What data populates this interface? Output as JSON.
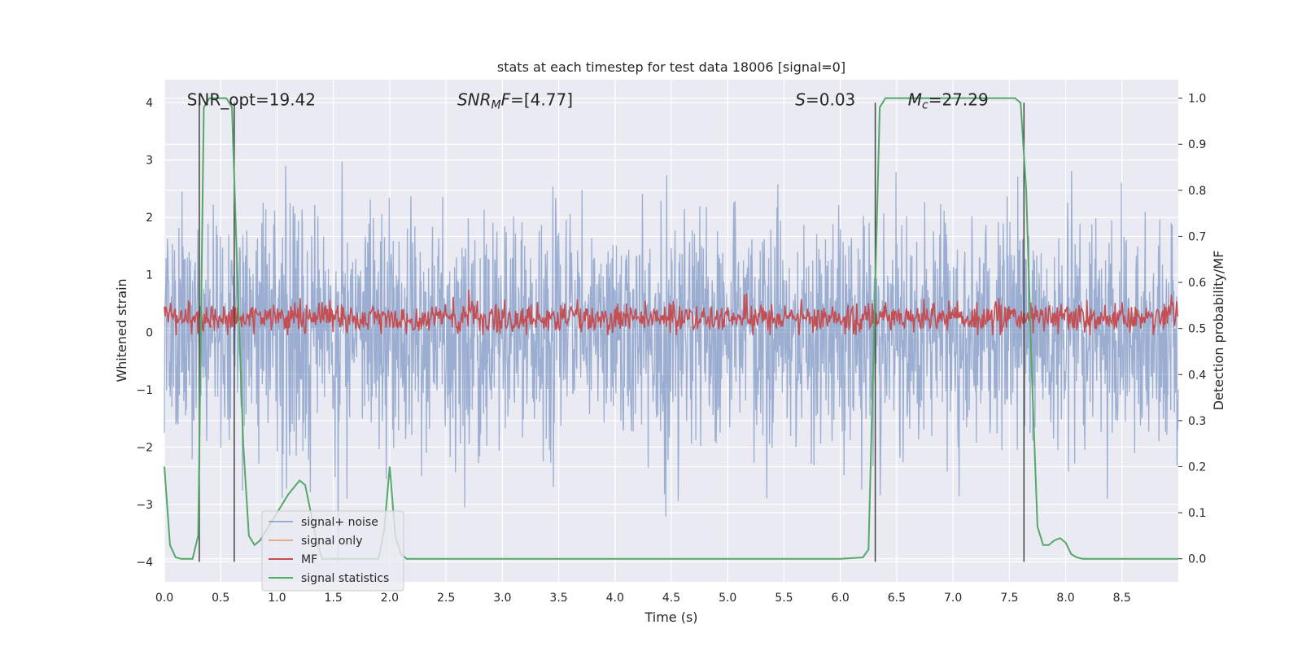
{
  "chart_data": {
    "type": "line",
    "title": "stats at each timestep for test data 18006 [signal=0]",
    "xlabel": "Time (s)",
    "ylabel": "Whitened strain",
    "ylabel_right": "Detection probability/MF",
    "xlim": [
      0.0,
      9.0
    ],
    "ylim": [
      -4.35,
      4.4
    ],
    "ylim_right": [
      -0.05,
      1.04
    ],
    "xticks": [
      0.0,
      0.5,
      1.0,
      1.5,
      2.0,
      2.5,
      3.0,
      3.5,
      4.0,
      4.5,
      5.0,
      5.5,
      6.0,
      6.5,
      7.0,
      7.5,
      8.0,
      8.5
    ],
    "xtick_labels": [
      "0.0",
      "0.5",
      "1.0",
      "1.5",
      "2.0",
      "2.5",
      "3.0",
      "3.5",
      "4.0",
      "4.5",
      "5.0",
      "5.5",
      "6.0",
      "6.5",
      "7.0",
      "7.5",
      "8.0",
      "8.5"
    ],
    "yticks": [
      -4,
      -3,
      -2,
      -1,
      0,
      1,
      2,
      3,
      4
    ],
    "ytick_labels": [
      "−4",
      "−3",
      "−2",
      "−1",
      "0",
      "1",
      "2",
      "3",
      "4"
    ],
    "yticks_right": [
      0.0,
      0.1,
      0.2,
      0.3,
      0.4,
      0.5,
      0.6,
      0.7,
      0.8,
      0.9,
      1.0
    ],
    "ytick_labels_right": [
      "0.0",
      "0.1",
      "0.2",
      "0.3",
      "0.4",
      "0.5",
      "0.6",
      "0.7",
      "0.8",
      "0.9",
      "1.0"
    ],
    "annotations": [
      {
        "name": "snr-opt",
        "text": "SNR_opt=19.42",
        "x": 0.2
      },
      {
        "name": "snr-mf",
        "text": "SNR_MF=[4.77]",
        "x": 2.6
      },
      {
        "name": "s-value",
        "text": "S=0.03",
        "x": 5.6
      },
      {
        "name": "chirp-mass",
        "text": "M_c=27.29",
        "x": 6.6
      }
    ],
    "annotation_y": 4.05,
    "vlines": [
      {
        "x": 0.31,
        "ymin": -4.0,
        "ymax": 4.0
      },
      {
        "x": 0.62,
        "ymin": -4.0,
        "ymax": 4.0
      },
      {
        "x": 6.31,
        "ymin": -4.0,
        "ymax": 4.0
      },
      {
        "x": 7.63,
        "ymin": -4.0,
        "ymax": 4.0
      }
    ],
    "series": [
      {
        "name": "signal+ noise",
        "color": "#4c72b0",
        "kind": "noise",
        "amplitude_std": 1.0,
        "n_points": 2300,
        "seed": 18006,
        "points": []
      },
      {
        "name": "signal only",
        "color": "#dd8452",
        "kind": "flat",
        "points": []
      },
      {
        "name": "MF",
        "color": "#c44e52",
        "kind": "mf",
        "mean": 0.25,
        "spread": 0.14,
        "n_points": 1300,
        "seed": 42,
        "points": []
      },
      {
        "name": "signal statistics",
        "color": "#55a868",
        "kind": "probability",
        "axis": "right",
        "x": [
          0.0,
          0.05,
          0.1,
          0.15,
          0.2,
          0.25,
          0.3,
          0.35,
          0.4,
          0.45,
          0.5,
          0.55,
          0.6,
          0.65,
          0.7,
          0.75,
          0.8,
          0.85,
          0.9,
          1.0,
          1.1,
          1.2,
          1.25,
          1.3,
          1.35,
          1.4,
          1.5,
          1.6,
          1.7,
          1.8,
          1.9,
          1.95,
          2.0,
          2.05,
          2.1,
          2.15,
          2.2,
          2.5,
          3.0,
          4.0,
          5.0,
          6.0,
          6.2,
          6.25,
          6.3,
          6.35,
          6.4,
          6.5,
          7.0,
          7.5,
          7.55,
          7.6,
          7.65,
          7.7,
          7.75,
          7.8,
          7.85,
          7.9,
          7.95,
          8.0,
          8.05,
          8.1,
          8.15,
          8.2,
          8.5,
          9.0
        ],
        "y": [
          0.2,
          0.03,
          0.003,
          0.0,
          0.0,
          0.0,
          0.05,
          0.98,
          1.0,
          1.0,
          1.0,
          1.0,
          0.98,
          0.6,
          0.25,
          0.05,
          0.03,
          0.04,
          0.06,
          0.1,
          0.14,
          0.17,
          0.16,
          0.1,
          0.04,
          0.0,
          0.0,
          0.0,
          0.0,
          0.0,
          0.0,
          0.06,
          0.2,
          0.05,
          0.01,
          0.0,
          0.0,
          0.0,
          0.0,
          0.0,
          0.0,
          0.0,
          0.003,
          0.02,
          0.5,
          0.98,
          1.0,
          1.0,
          1.0,
          1.0,
          1.0,
          0.99,
          0.8,
          0.4,
          0.07,
          0.03,
          0.03,
          0.04,
          0.045,
          0.035,
          0.01,
          0.003,
          0.0,
          0.0,
          0.0,
          0.0
        ]
      }
    ],
    "legend_position": "lower-left"
  }
}
